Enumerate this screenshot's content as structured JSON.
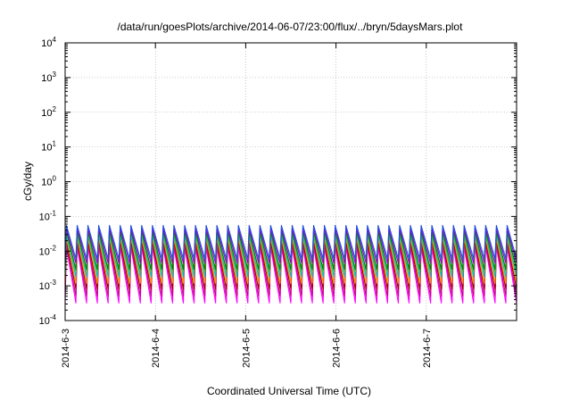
{
  "chart_data": {
    "type": "line",
    "title": "/data/run/goesPlots/archive/2014-06-07/23:00/flux/../bryn/5daysMars.plot",
    "xlabel": "Coordinated Universal Time (UTC)",
    "ylabel": "cGy/day",
    "yscale": "log",
    "ylim": [
      0.0001,
      10000
    ],
    "xlim_days": [
      0,
      5
    ],
    "x_ticks": [
      {
        "label": "2014-6-3",
        "day": 0
      },
      {
        "label": "2014-6-4",
        "day": 1
      },
      {
        "label": "2014-6-5",
        "day": 2
      },
      {
        "label": "2014-6-6",
        "day": 3
      },
      {
        "label": "2014-6-7",
        "day": 4
      }
    ],
    "y_ticks": [
      {
        "base": "10",
        "exp": "-4",
        "value": 0.0001
      },
      {
        "base": "10",
        "exp": "-3",
        "value": 0.001
      },
      {
        "base": "10",
        "exp": "-2",
        "value": 0.01
      },
      {
        "base": "10",
        "exp": "-1",
        "value": 0.1
      },
      {
        "base": "10",
        "exp": "0",
        "value": 1
      },
      {
        "base": "10",
        "exp": "1",
        "value": 10
      },
      {
        "base": "10",
        "exp": "2",
        "value": 100
      },
      {
        "base": "10",
        "exp": "3",
        "value": 1000
      },
      {
        "base": "10",
        "exp": "4",
        "value": 10000
      }
    ],
    "grid": true,
    "legend": "none",
    "series": [
      {
        "color": "#ff00ff",
        "peak": 0.013,
        "trough": 0.00032
      },
      {
        "color": "#c8008c",
        "peak": 0.016,
        "trough": 0.0005
      },
      {
        "color": "#a00000",
        "peak": 0.02,
        "trough": 0.0008
      },
      {
        "color": "#ff8c00",
        "peak": 0.024,
        "trough": 0.0012
      },
      {
        "color": "#00c0c0",
        "peak": 0.03,
        "trough": 0.0018
      },
      {
        "color": "#40c040",
        "peak": 0.034,
        "trough": 0.0025
      },
      {
        "color": "#008000",
        "peak": 0.038,
        "trough": 0.003
      },
      {
        "color": "#9400d3",
        "peak": 0.045,
        "trough": 0.0045
      },
      {
        "color": "#2050e0",
        "peak": 0.055,
        "trough": 0.006
      }
    ],
    "oscillation": {
      "cycles": 42,
      "rise_fraction": 0.12
    }
  }
}
